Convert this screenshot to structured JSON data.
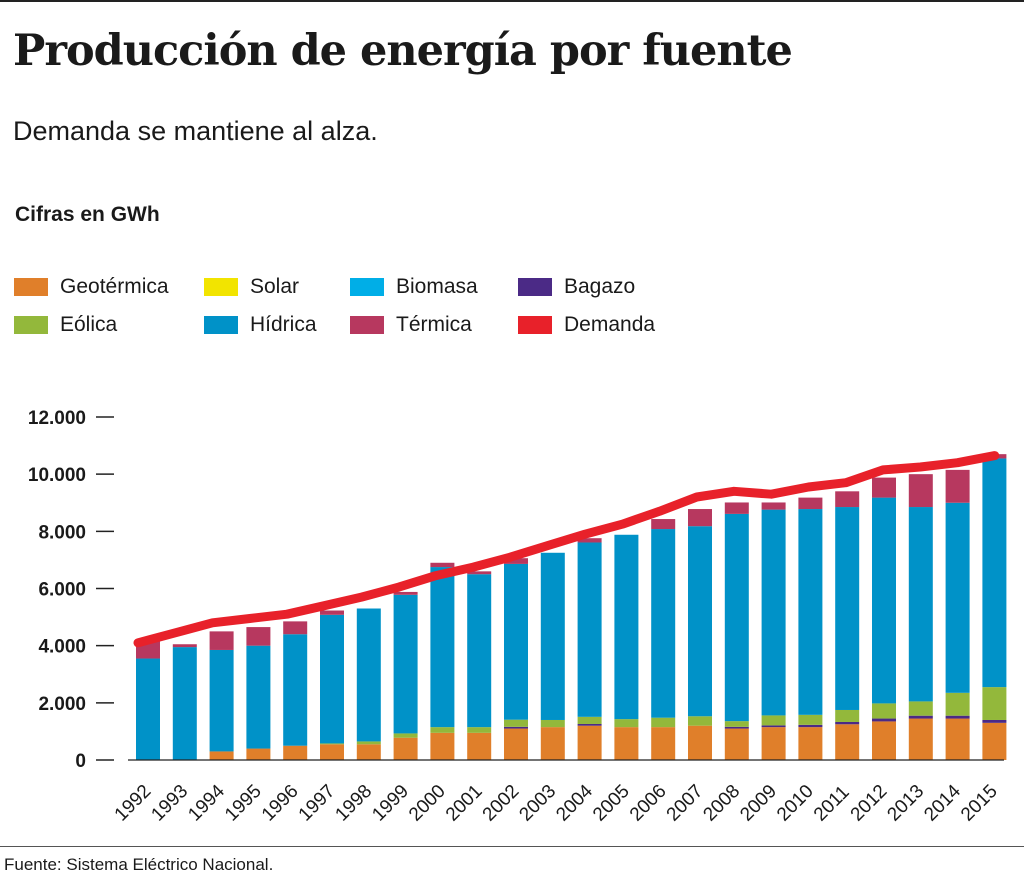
{
  "header": {
    "title": "Producción de energía por fuente",
    "subtitle": "Demanda se mantiene al alza.",
    "units": "Cifras en GWh"
  },
  "legend": [
    {
      "key": "geotermica",
      "label": "Geotérmica",
      "color": "#e07f2a"
    },
    {
      "key": "solar",
      "label": "Solar",
      "color": "#f2e400"
    },
    {
      "key": "biomasa",
      "label": "Biomasa",
      "color": "#00aee7"
    },
    {
      "key": "bagazo",
      "label": "Bagazo",
      "color": "#4b2a86"
    },
    {
      "key": "eolica",
      "label": "Eólica",
      "color": "#93b83b"
    },
    {
      "key": "hidrica",
      "label": "Hídrica",
      "color": "#0092c8"
    },
    {
      "key": "termica",
      "label": "Térmica",
      "color": "#b7385f"
    },
    {
      "key": "demanda",
      "label": "Demanda",
      "color": "#e8212a"
    }
  ],
  "source": "Fuente: Sistema Eléctrico Nacional.",
  "chart_data": {
    "type": "bar",
    "stacked": true,
    "overlay_line": "Demanda",
    "categories": [
      "1992",
      "1993",
      "1994",
      "1995",
      "1996",
      "1997",
      "1998",
      "1999",
      "2000",
      "2001",
      "2002",
      "2003",
      "2004",
      "2005",
      "2006",
      "2007",
      "2008",
      "2009",
      "2010",
      "2011",
      "2012",
      "2013",
      "2014",
      "2015"
    ],
    "ylim": [
      0,
      12000
    ],
    "yticks": [
      0,
      2000,
      4000,
      6000,
      8000,
      10000,
      12000
    ],
    "ytick_labels": [
      "0",
      "2.000",
      "4.000",
      "6.000",
      "8.000",
      "10.000",
      "12.000"
    ],
    "grid": false,
    "series": [
      {
        "name": "Geotérmica",
        "color": "#e07f2a",
        "values": [
          0,
          0,
          300,
          400,
          500,
          550,
          550,
          780,
          950,
          950,
          1100,
          1150,
          1200,
          1150,
          1150,
          1200,
          1100,
          1150,
          1150,
          1250,
          1350,
          1450,
          1450,
          1300
        ]
      },
      {
        "name": "Bagazo",
        "color": "#4b2a86",
        "values": [
          0,
          0,
          0,
          0,
          0,
          0,
          0,
          0,
          0,
          0,
          60,
          0,
          60,
          0,
          0,
          0,
          60,
          60,
          80,
          80,
          100,
          100,
          100,
          100
        ]
      },
      {
        "name": "Eólica",
        "color": "#93b83b",
        "values": [
          0,
          0,
          0,
          0,
          0,
          30,
          100,
          150,
          200,
          200,
          250,
          250,
          250,
          280,
          330,
          330,
          200,
          350,
          350,
          420,
          530,
          500,
          800,
          1150
        ]
      },
      {
        "name": "Solar",
        "color": "#f2e400",
        "values": [
          0,
          0,
          0,
          0,
          0,
          0,
          0,
          0,
          0,
          0,
          0,
          0,
          0,
          0,
          0,
          0,
          0,
          0,
          0,
          0,
          0,
          0,
          0,
          0
        ]
      },
      {
        "name": "Biomasa",
        "color": "#00aee7",
        "values": [
          0,
          0,
          0,
          0,
          0,
          0,
          0,
          0,
          0,
          0,
          0,
          0,
          0,
          0,
          0,
          0,
          0,
          0,
          0,
          0,
          0,
          0,
          0,
          0
        ]
      },
      {
        "name": "Hídrica",
        "color": "#0092c8",
        "values": [
          3550,
          3950,
          3550,
          3600,
          3900,
          4500,
          4650,
          4850,
          5600,
          5350,
          5450,
          5850,
          6100,
          6450,
          6600,
          6650,
          7250,
          7200,
          7200,
          7100,
          7200,
          6800,
          6650,
          8000
        ]
      },
      {
        "name": "Térmica",
        "color": "#b7385f",
        "values": [
          600,
          100,
          650,
          650,
          450,
          150,
          0,
          100,
          150,
          100,
          200,
          0,
          150,
          0,
          350,
          600,
          400,
          250,
          400,
          550,
          700,
          1150,
          1150,
          150
        ]
      }
    ],
    "demand": [
      4100,
      4450,
      4800,
      4950,
      5100,
      5400,
      5700,
      6050,
      6450,
      6750,
      7100,
      7500,
      7900,
      8250,
      8700,
      9200,
      9400,
      9300,
      9550,
      9700,
      10150,
      10250,
      10400,
      10650
    ]
  }
}
